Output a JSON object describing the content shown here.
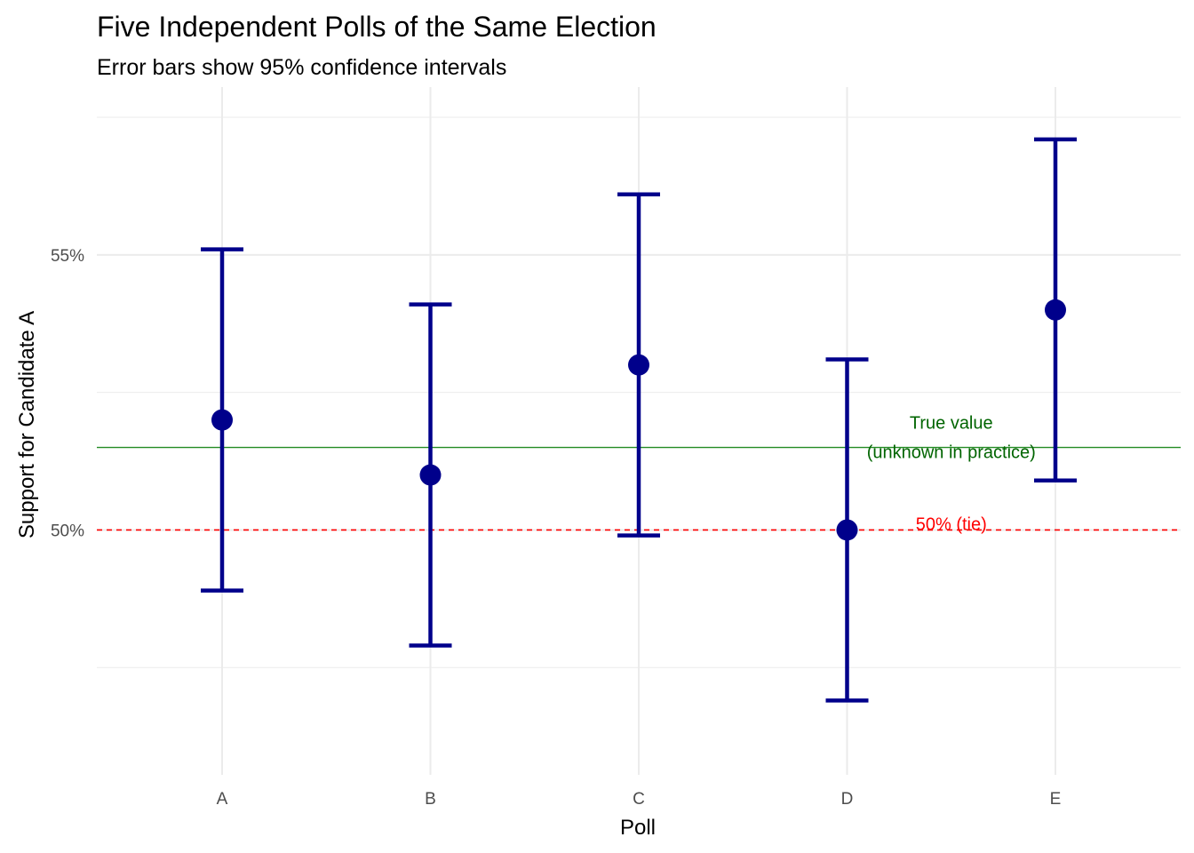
{
  "chart_data": {
    "type": "scatter",
    "title": "Five Independent Polls of the Same Election",
    "subtitle": "Error bars show 95% confidence intervals",
    "xlabel": "Poll",
    "ylabel": "Support for Candidate A",
    "categories": [
      "A",
      "B",
      "C",
      "D",
      "E"
    ],
    "values": [
      0.52,
      0.51,
      0.53,
      0.5,
      0.54
    ],
    "ci_lower": [
      0.489,
      0.479,
      0.499,
      0.469,
      0.509
    ],
    "ci_upper": [
      0.551,
      0.541,
      0.561,
      0.531,
      0.571
    ],
    "ylim": [
      0.4555,
      0.5805
    ],
    "y_ticks": [
      0.5,
      0.55
    ],
    "y_tick_labels": [
      "50%",
      "55%"
    ],
    "grid": true,
    "point_color": "#00008B",
    "reference_lines": [
      {
        "value": 0.515,
        "style": "solid",
        "color": "#228B22",
        "label_lines": [
          "True value",
          "(unknown in practice)"
        ],
        "label_color": "#006400",
        "label_x_category": 3.5
      },
      {
        "value": 0.5,
        "style": "dashed",
        "color": "#FF0000",
        "label_lines": [
          "50% (tie)"
        ],
        "label_color": "#FF0000",
        "label_x_category": 3.5
      }
    ]
  }
}
